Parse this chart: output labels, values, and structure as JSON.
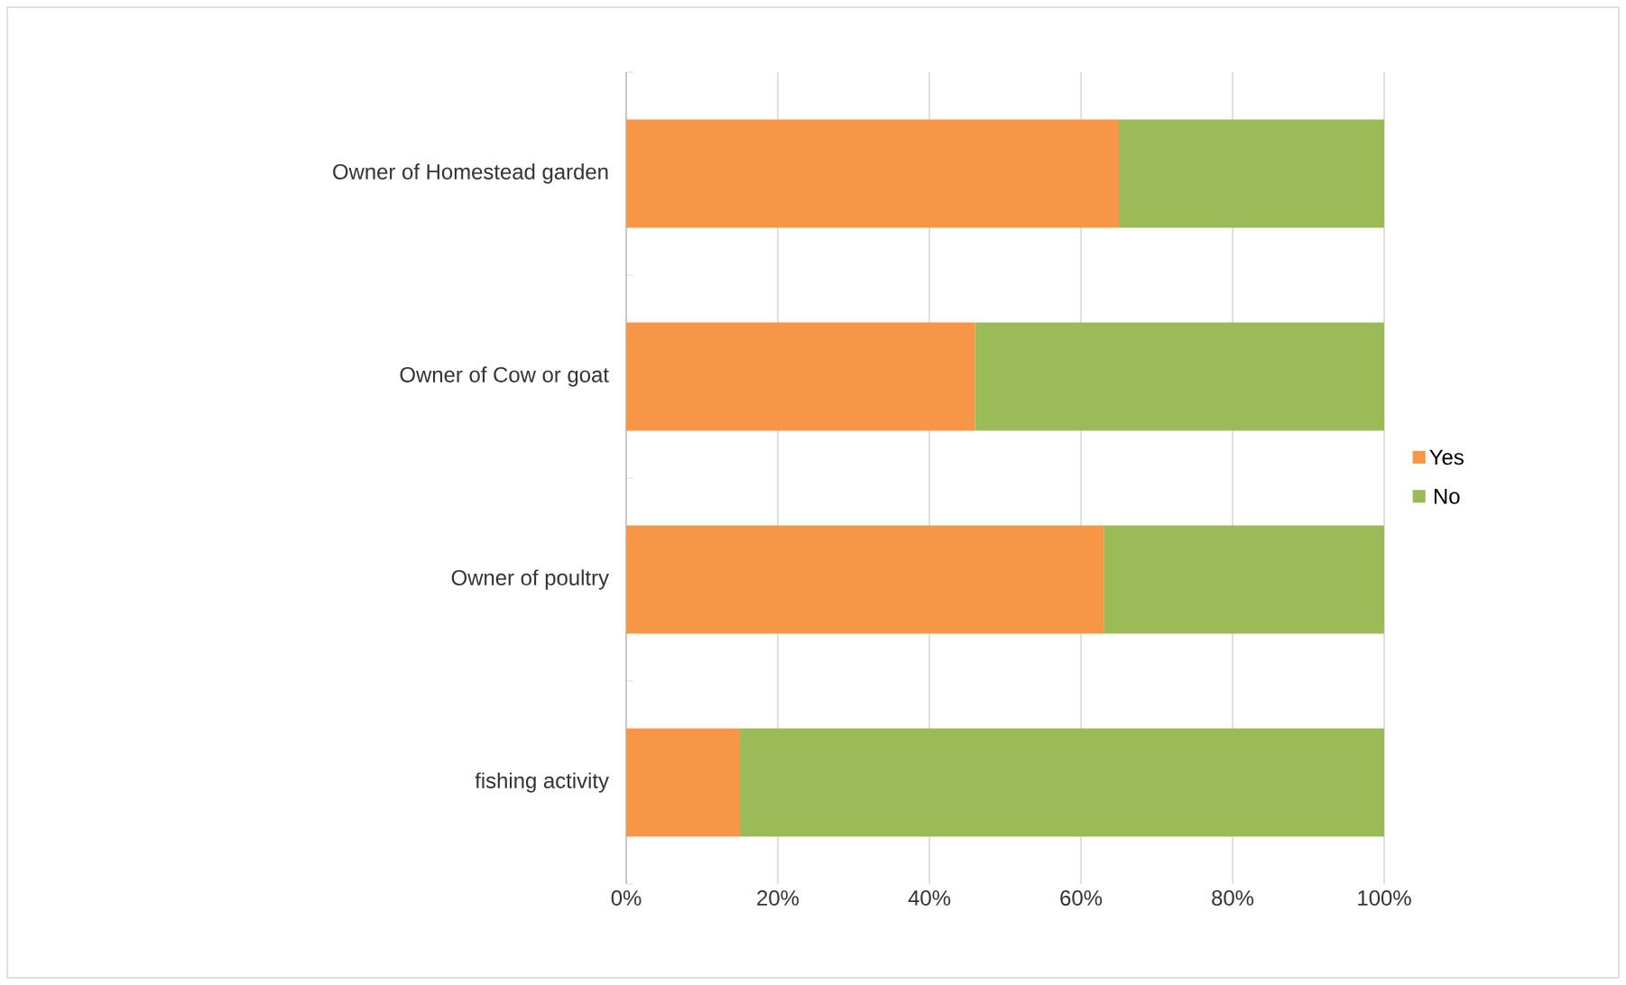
{
  "chart_data": {
    "type": "bar",
    "orientation": "horizontal",
    "stacked": true,
    "categories": [
      "Owner of Homestead garden",
      "Owner of Cow or goat",
      "Owner of poultry",
      "fishing activity"
    ],
    "series": [
      {
        "name": "Yes",
        "color": "#f79646",
        "values": [
          65,
          46,
          63,
          15
        ]
      },
      {
        "name": "No",
        "color": "#9bbb59",
        "values": [
          35,
          54,
          37,
          85
        ]
      }
    ],
    "xlim": [
      0,
      100
    ],
    "xticks": [
      {
        "value": 0,
        "label": "0%"
      },
      {
        "value": 20,
        "label": "20%"
      },
      {
        "value": 40,
        "label": "40%"
      },
      {
        "value": 60,
        "label": "60%"
      },
      {
        "value": 80,
        "label": "80%"
      },
      {
        "value": 100,
        "label": "100%"
      }
    ],
    "grid": "x",
    "legend": "right"
  }
}
